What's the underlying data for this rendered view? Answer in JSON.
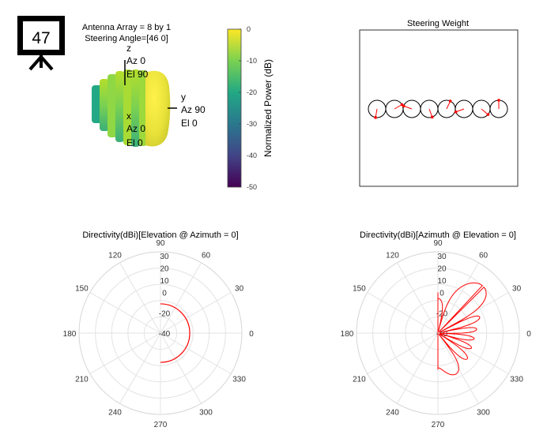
{
  "badge": {
    "number": "47"
  },
  "pattern3d": {
    "title_line1": "Antenna Array = 8 by 1",
    "title_line2": "Steering Angle=[46 0]",
    "axis_z": {
      "name": "z",
      "az": "Az 0",
      "el": "El 90"
    },
    "axis_y": {
      "name": "y",
      "az": "Az 90",
      "el": "El 0"
    },
    "axis_x": {
      "name": "x",
      "az": "Az 0",
      "el": "El 0"
    },
    "colorbar": {
      "label": "Normalized Power (dB)",
      "ticks": [
        "0",
        "-10",
        "-20",
        "-30",
        "-40",
        "-50"
      ],
      "range": [
        -50,
        0
      ],
      "colormap": [
        "#fde725",
        "#7ad151",
        "#22a884",
        "#2a788e",
        "#414487",
        "#440154"
      ]
    }
  },
  "chart_data": [
    {
      "type": "scatter",
      "title": "Steering Weight",
      "element_count": 8,
      "phase_deg": [
        -100,
        30,
        160,
        -70,
        65,
        -160,
        -40,
        90
      ],
      "colors": {
        "circle": "#000000",
        "arrow": "#ff0000"
      }
    },
    {
      "type": "polar",
      "title": "Directivity(dBi)[Elevation @ Azimuth = 0]",
      "angle_ticks": [
        "0",
        "30",
        "60",
        "90",
        "120",
        "150",
        "180",
        "210",
        "240",
        "270",
        "300",
        "330"
      ],
      "radial_ticks": [
        "30",
        "20",
        "10",
        "0",
        "-20",
        "-40"
      ],
      "series": [
        {
          "color": "#ff0000",
          "angle_start_deg": -90,
          "angle_end_deg": 90,
          "value_dBi": -20
        }
      ]
    },
    {
      "type": "polar",
      "title": "Directivity(dBi)[Azimuth @ Elevation = 0]",
      "angle_ticks": [
        "0",
        "30",
        "60",
        "90",
        "120",
        "150",
        "180",
        "210",
        "240",
        "270",
        "300",
        "330"
      ],
      "radial_ticks": [
        "30",
        "20",
        "10",
        "0",
        "-20",
        "-40"
      ],
      "series": [
        {
          "color": "#ff0000",
          "shape": "multi-lobe",
          "main_lobe_deg": 46,
          "lobe_count": 7
        }
      ]
    }
  ]
}
